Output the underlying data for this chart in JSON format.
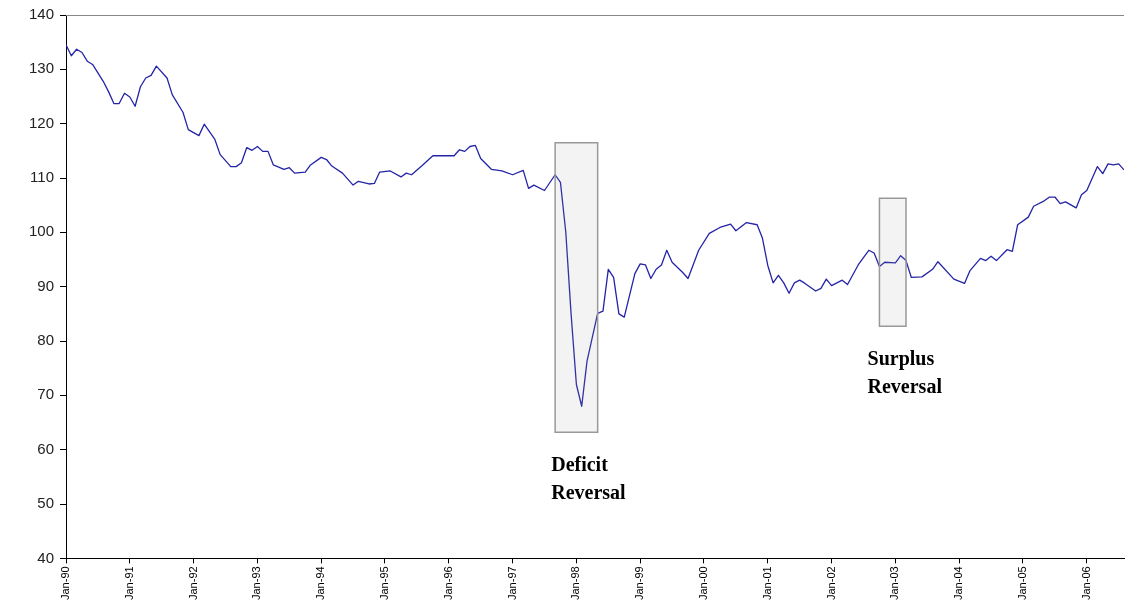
{
  "chart_data": {
    "type": "line",
    "x": [
      "1990-01",
      "1990-02",
      "1990-03",
      "1990-04",
      "1990-05",
      "1990-06",
      "1990-08",
      "1990-09",
      "1990-10",
      "1990-11",
      "1990-12",
      "1991-01",
      "1991-02",
      "1991-03",
      "1991-04",
      "1991-05",
      "1991-06",
      "1991-08",
      "1991-09",
      "1991-11",
      "1991-12",
      "1992-02",
      "1992-03",
      "1992-05",
      "1992-06",
      "1992-08",
      "1992-09",
      "1992-10",
      "1992-11",
      "1992-12",
      "1993-01",
      "1993-02",
      "1993-03",
      "1993-04",
      "1993-06",
      "1993-07",
      "1993-08",
      "1993-10",
      "1993-11",
      "1994-01",
      "1994-02",
      "1994-03",
      "1994-05",
      "1994-07",
      "1994-08",
      "1994-10",
      "1994-11",
      "1994-12",
      "1995-02",
      "1995-04",
      "1995-05",
      "1995-06",
      "1995-08",
      "1995-10",
      "1996-02",
      "1996-03",
      "1996-04",
      "1996-05",
      "1996-06",
      "1996-07",
      "1996-09",
      "1996-11",
      "1997-01",
      "1997-03",
      "1997-04",
      "1997-05",
      "1997-07",
      "1997-09",
      "1997-10",
      "1997-11",
      "1997-12",
      "1998-01",
      "1998-02",
      "1998-03",
      "1998-05",
      "1998-06",
      "1998-07",
      "1998-08",
      "1998-09",
      "1998-10",
      "1998-12",
      "1999-01",
      "1999-02",
      "1999-03",
      "1999-04",
      "1999-05",
      "1999-06",
      "1999-07",
      "1999-09",
      "1999-10",
      "1999-12",
      "2000-02",
      "2000-04",
      "2000-06",
      "2000-07",
      "2000-09",
      "2000-11",
      "2000-12",
      "2001-01",
      "2001-02",
      "2001-03",
      "2001-04",
      "2001-05",
      "2001-06",
      "2001-07",
      "2001-08",
      "2001-10",
      "2001-11",
      "2001-12",
      "2002-01",
      "2002-03",
      "2002-04",
      "2002-06",
      "2002-08",
      "2002-09",
      "2002-10",
      "2002-11",
      "2003-01",
      "2003-02",
      "2003-03",
      "2003-04",
      "2003-06",
      "2003-08",
      "2003-09",
      "2003-12",
      "2004-02",
      "2004-03",
      "2004-05",
      "2004-06",
      "2004-07",
      "2004-08",
      "2004-10",
      "2004-11",
      "2004-12",
      "2005-02",
      "2005-03",
      "2005-05",
      "2005-06",
      "2005-07",
      "2005-08",
      "2005-09",
      "2005-11",
      "2005-12",
      "2006-01",
      "2006-03",
      "2006-04",
      "2006-05",
      "2006-06",
      "2006-07",
      "2006-08"
    ],
    "series": [
      {
        "color": "#2424a8",
        "values": [
          134.5,
          132.5,
          133.7,
          133.1,
          131.5,
          130.9,
          127.8,
          125.9,
          123.7,
          123.7,
          125.6,
          124.9,
          123.2,
          126.8,
          128.4,
          128.9,
          130.6,
          128.4,
          125.3,
          122.1,
          118.9,
          117.8,
          119.9,
          117.1,
          114.3,
          112.1,
          112.1,
          112.8,
          115.6,
          115.1,
          115.8,
          114.9,
          114.9,
          112.4,
          111.6,
          111.9,
          110.9,
          111.1,
          112.4,
          113.8,
          113.4,
          112.2,
          110.9,
          108.7,
          109.4,
          108.9,
          109.0,
          111.1,
          111.3,
          110.2,
          110.9,
          110.6,
          112.3,
          114.1,
          114.1,
          115.2,
          114.9,
          115.8,
          116.0,
          113.6,
          111.6,
          111.3,
          110.6,
          111.4,
          108.1,
          108.7,
          107.7,
          110.6,
          109.2,
          100.1,
          85.0,
          72.0,
          68.0,
          76.3,
          85.1,
          85.5,
          93.2,
          91.7,
          85.0,
          84.4,
          92.4,
          94.2,
          94.0,
          91.5,
          93.2,
          94.0,
          96.7,
          94.5,
          92.6,
          91.5,
          96.7,
          99.8,
          100.9,
          101.5,
          100.3,
          101.8,
          101.4,
          98.9,
          93.9,
          90.7,
          92.1,
          90.7,
          88.8,
          90.7,
          91.2,
          90.6,
          89.2,
          89.7,
          91.4,
          90.2,
          91.2,
          90.4,
          94.0,
          96.7,
          96.2,
          93.7,
          94.5,
          94.4,
          95.7,
          94.8,
          91.7,
          91.8,
          93.2,
          94.6,
          91.4,
          90.6,
          92.9,
          95.2,
          94.8,
          95.6,
          94.8,
          96.8,
          96.5,
          101.4,
          102.8,
          104.8,
          105.8,
          106.5,
          106.5,
          105.3,
          105.6,
          104.5,
          106.9,
          107.7,
          112.1,
          110.8,
          112.6,
          112.4,
          112.6,
          111.5
        ]
      }
    ],
    "xlim": [
      "1990-01",
      "2006-08"
    ],
    "xticks": [
      {
        "value": "1990-01",
        "label": "Jan-90"
      },
      {
        "value": "1991-01",
        "label": "Jan-91"
      },
      {
        "value": "1992-01",
        "label": "Jan-92"
      },
      {
        "value": "1993-01",
        "label": "Jan-93"
      },
      {
        "value": "1994-01",
        "label": "Jan-94"
      },
      {
        "value": "1995-01",
        "label": "Jan-95"
      },
      {
        "value": "1996-01",
        "label": "Jan-96"
      },
      {
        "value": "1997-01",
        "label": "Jan-97"
      },
      {
        "value": "1998-01",
        "label": "Jan-98"
      },
      {
        "value": "1999-01",
        "label": "Jan-99"
      },
      {
        "value": "2000-01",
        "label": "Jan-00"
      },
      {
        "value": "2001-01",
        "label": "Jan-01"
      },
      {
        "value": "2002-01",
        "label": "Jan-02"
      },
      {
        "value": "2003-01",
        "label": "Jan-03"
      },
      {
        "value": "2004-01",
        "label": "Jan-04"
      },
      {
        "value": "2005-01",
        "label": "Jan-05"
      },
      {
        "value": "2006-01",
        "label": "Jan-06"
      }
    ],
    "ylim": [
      40,
      140
    ],
    "yticks": [
      40,
      50,
      60,
      70,
      80,
      90,
      100,
      110,
      120,
      130,
      140
    ],
    "bands": [
      {
        "axis": "x",
        "from": "1997-09",
        "to": "1998-05",
        "label": "Deficit Reversal",
        "color": "#999999"
      },
      {
        "axis": "x",
        "from": "2002-10",
        "to": "2003-03",
        "label": "Surplus Reversal",
        "color": "#999999"
      }
    ],
    "grid": false,
    "legend": false,
    "line_style": "solid"
  }
}
